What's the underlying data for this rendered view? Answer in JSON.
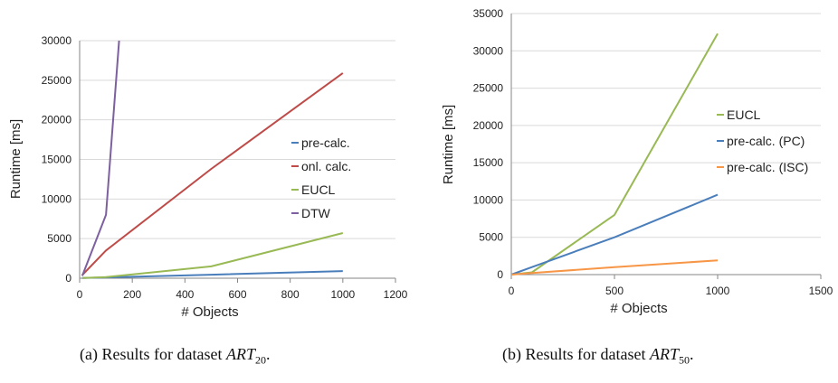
{
  "chart_data": [
    {
      "type": "line",
      "xlabel": "# Objects",
      "ylabel": "Runtime [ms]",
      "xlim": [
        0,
        1200
      ],
      "ylim": [
        0,
        30000
      ],
      "xticks": [
        "0",
        "200",
        "400",
        "600",
        "800",
        "1000",
        "1200"
      ],
      "yticks": [
        "0",
        "5000",
        "10000",
        "15000",
        "20000",
        "25000",
        "30000"
      ],
      "grid": "horizontal",
      "legend": "right",
      "series": [
        {
          "name": "pre-calc.",
          "color": "#4a7ebb",
          "x": [
            10,
            100,
            500,
            1000
          ],
          "y": [
            20,
            100,
            450,
            900
          ]
        },
        {
          "name": "onl. calc.",
          "color": "#be4b48",
          "x": [
            10,
            100,
            500,
            1000
          ],
          "y": [
            400,
            3500,
            13800,
            25900
          ]
        },
        {
          "name": "EUCL",
          "color": "#98b954",
          "x": [
            10,
            100,
            500,
            1000
          ],
          "y": [
            20,
            150,
            1500,
            5700
          ]
        },
        {
          "name": "DTW",
          "color": "#7d60a0",
          "x": [
            10,
            100,
            150
          ],
          "y": [
            300,
            8000,
            30000
          ]
        }
      ]
    },
    {
      "type": "line",
      "xlabel": "# Objects",
      "ylabel": "Runtime [ms]",
      "xlim": [
        0,
        1500
      ],
      "ylim": [
        0,
        35000
      ],
      "xticks": [
        "0",
        "500",
        "1000",
        "1500"
      ],
      "yticks": [
        "0",
        "5000",
        "10000",
        "15000",
        "20000",
        "25000",
        "30000",
        "35000"
      ],
      "grid": "horizontal",
      "legend": "right",
      "series": [
        {
          "name": "EUCL",
          "color": "#98b954",
          "x": [
            0,
            100,
            500,
            1000
          ],
          "y": [
            0,
            300,
            8000,
            32300
          ]
        },
        {
          "name": "pre-calc. (PC)",
          "color": "#4a7ebb",
          "x": [
            0,
            100,
            500,
            1000
          ],
          "y": [
            0,
            1000,
            5000,
            10700
          ]
        },
        {
          "name": "pre-calc. (ISC)",
          "color": "#f79646",
          "x": [
            0,
            100,
            500,
            1000
          ],
          "y": [
            0,
            200,
            1000,
            1900
          ]
        }
      ]
    }
  ],
  "captions": {
    "a": {
      "prefix": "(a) Results for dataset ",
      "var": "ART",
      "sub": "20",
      "suffix": "."
    },
    "b": {
      "prefix": "(b) Results for dataset ",
      "var": "ART",
      "sub": "50",
      "suffix": "."
    }
  }
}
